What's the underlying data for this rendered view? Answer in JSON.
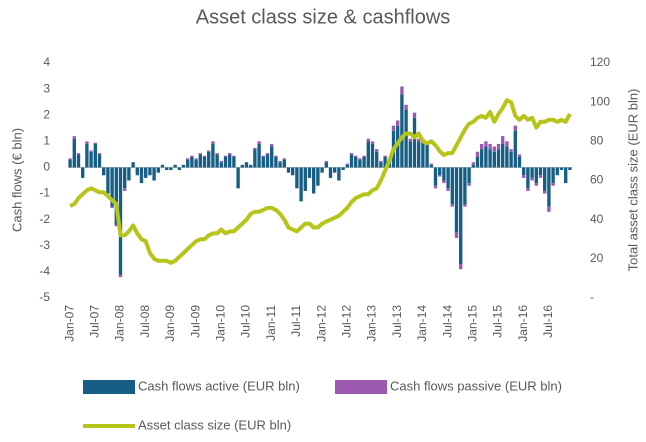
{
  "chart_data": {
    "type": "bar-line",
    "title": "Asset class size & cashflows",
    "y_label": "Cash flows (€ bln)",
    "y2_label": "Total asset class size (EUR bln)",
    "categories": [
      "Jan-07",
      null,
      null,
      null,
      null,
      null,
      "Jul-07",
      null,
      null,
      null,
      null,
      null,
      "Jan-08",
      null,
      null,
      null,
      null,
      null,
      "Jul-08",
      null,
      null,
      null,
      null,
      null,
      "Jan-09",
      null,
      null,
      null,
      null,
      null,
      "Jul-09",
      null,
      null,
      null,
      null,
      null,
      "Jan-10",
      null,
      null,
      null,
      null,
      null,
      "Jul-10",
      null,
      null,
      null,
      null,
      null,
      "Jan-11",
      null,
      null,
      null,
      null,
      null,
      "Jul-11",
      null,
      null,
      null,
      null,
      null,
      "Jan-12",
      null,
      null,
      null,
      null,
      null,
      "Jul-12",
      null,
      null,
      null,
      null,
      null,
      "Jan-13",
      null,
      null,
      null,
      null,
      null,
      "Jul-13",
      null,
      null,
      null,
      null,
      null,
      "Jan-14",
      null,
      null,
      null,
      null,
      null,
      "Jul-14",
      null,
      null,
      null,
      null,
      null,
      "Jan-15",
      null,
      null,
      null,
      null,
      null,
      "Jul-15",
      null,
      null,
      null,
      null,
      null,
      "Jan-16",
      null,
      null,
      null,
      null,
      null,
      "Jul-16",
      null,
      null,
      null,
      null,
      null
    ],
    "series": [
      {
        "name": "Cash flows active (EUR bln)",
        "color": "#175e84",
        "kind": "bar",
        "values": [
          0.3,
          1.1,
          0.5,
          -0.4,
          0.9,
          0.6,
          0.9,
          0.5,
          -0.3,
          -1.0,
          -1.5,
          -2.2,
          -4.1,
          -0.8,
          -0.5,
          0.2,
          -0.3,
          -0.6,
          -0.4,
          -0.3,
          -0.5,
          -0.2,
          0.1,
          -0.1,
          -0.1,
          0.1,
          -0.1,
          0.1,
          0.3,
          0.4,
          0.3,
          0.5,
          0.4,
          0.6,
          0.9,
          0.5,
          0.2,
          0.4,
          0.5,
          0.4,
          -0.8,
          0.1,
          0.2,
          0.1,
          0.7,
          0.9,
          0.4,
          0.5,
          0.8,
          0.4,
          0.2,
          0.3,
          -0.2,
          -0.3,
          -0.8,
          -1.3,
          -0.9,
          -0.4,
          -1.0,
          -0.7,
          -0.2,
          0.2,
          -0.4,
          -0.2,
          -0.5,
          -0.1,
          0.1,
          0.5,
          0.4,
          0.3,
          0.4,
          1.0,
          0.9,
          0.6,
          0.2,
          0.4,
          0.3,
          1.4,
          1.6,
          2.8,
          2.2,
          1.0,
          1.9,
          1.0,
          1.0,
          0.9,
          0.1,
          -0.7,
          -0.3,
          -0.5,
          -0.8,
          -1.4,
          -2.5,
          -3.7,
          -1.4,
          -0.6,
          0.1,
          0.4,
          0.7,
          0.8,
          0.7,
          0.6,
          0.7,
          0.9,
          0.8,
          0.6,
          1.4,
          0.4,
          -0.3,
          -0.8,
          -0.4,
          -0.6,
          -0.3,
          -0.9,
          -1.5,
          -0.6,
          -0.3,
          -0.1,
          -0.6,
          -0.1
        ]
      },
      {
        "name": "Cash flows passive (EUR bln)",
        "color": "#9b59b0",
        "kind": "bar",
        "values": [
          0.05,
          0.1,
          0.05,
          0,
          0.1,
          0.05,
          0.05,
          0.05,
          0,
          0,
          -0.05,
          -0.05,
          -0.1,
          -0.1,
          0,
          0,
          0,
          0,
          0,
          0,
          0,
          0,
          0,
          0,
          0,
          0,
          0,
          0,
          0.05,
          0.05,
          0.05,
          0.05,
          0.05,
          0.05,
          0.1,
          0.05,
          0.05,
          0.05,
          0.05,
          0.05,
          0,
          0,
          0,
          0,
          0.05,
          0.1,
          0.05,
          0.05,
          0.1,
          0.05,
          0.05,
          0.05,
          0,
          0,
          0,
          0,
          0,
          0,
          0,
          0,
          0,
          0.05,
          0,
          0,
          0,
          0,
          0.05,
          0.05,
          0.05,
          0.05,
          0.05,
          0.1,
          0.1,
          0.1,
          0.05,
          0.05,
          0.05,
          0.2,
          0.2,
          0.3,
          0.2,
          0.1,
          0.2,
          0.1,
          0.1,
          0.1,
          0.05,
          -0.1,
          -0.05,
          -0.1,
          -0.1,
          -0.1,
          -0.2,
          -0.2,
          -0.1,
          -0.1,
          0.1,
          0.2,
          0.2,
          0.2,
          0.2,
          0.2,
          0.2,
          0.3,
          0.2,
          0.1,
          0.2,
          0.1,
          -0.1,
          -0.1,
          -0.1,
          -0.1,
          -0.1,
          -0.1,
          -0.2,
          -0.1,
          0,
          0,
          0,
          0
        ]
      },
      {
        "name": "Asset class size (EUR bln)",
        "color": "#b7c41a",
        "kind": "line",
        "axis": "y2",
        "values": [
          47,
          48,
          51,
          53,
          55,
          56,
          55,
          54,
          54,
          52,
          50,
          48,
          32,
          32,
          34,
          37,
          33,
          30,
          29,
          23,
          20,
          19,
          19,
          19,
          18,
          19,
          21,
          23,
          25,
          27,
          29,
          30,
          30,
          32,
          33,
          33,
          35,
          33,
          34,
          34,
          36,
          38,
          40,
          43,
          44,
          44,
          45,
          46,
          46,
          45,
          43,
          40,
          36,
          35,
          34,
          36,
          38,
          38,
          36,
          36,
          38,
          39,
          40,
          41,
          42,
          44,
          46,
          49,
          51,
          52,
          53,
          53,
          55,
          56,
          60,
          65,
          70,
          76,
          79,
          82,
          84,
          84,
          82,
          84,
          80,
          79,
          80,
          78,
          75,
          73,
          74,
          74,
          78,
          82,
          86,
          89,
          90,
          92,
          93,
          92,
          95,
          90,
          94,
          97,
          101,
          100,
          93,
          91,
          93,
          91,
          92,
          87,
          90,
          90,
          91,
          91,
          90,
          91,
          90,
          94
        ]
      }
    ],
    "ylim": [
      -5,
      4
    ],
    "yticks": [
      -5,
      -4,
      -3,
      -2,
      -1,
      0,
      1,
      2,
      3,
      4
    ],
    "y2lim": [
      0,
      120
    ],
    "y2ticks": [
      {
        "value": 0,
        "label": "-"
      },
      20,
      40,
      60,
      80,
      100,
      120
    ],
    "grid": false
  }
}
